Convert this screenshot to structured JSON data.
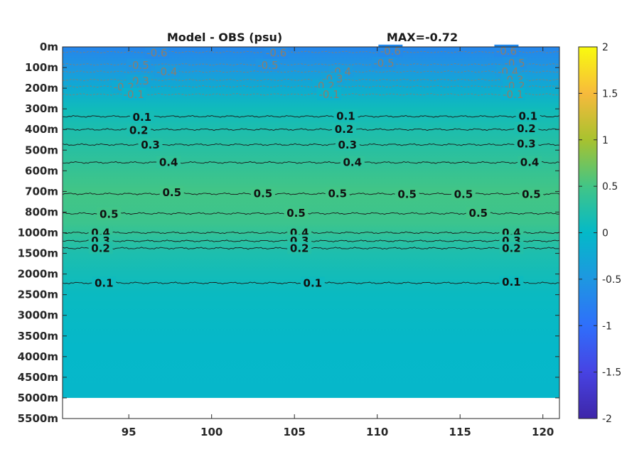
{
  "chart_data": {
    "type": "heatmap",
    "title": "Model - OBS (psu)",
    "annotation": "MAX=-0.72",
    "xlabel": "",
    "ylabel": "",
    "xlim": [
      91,
      121
    ],
    "x_ticks": [
      95,
      100,
      105,
      110,
      115,
      120
    ],
    "x_tick_labels": [
      "95",
      "100",
      "105",
      "110",
      "115",
      "120"
    ],
    "y_tick_labels": [
      "0m",
      "100m",
      "200m",
      "300m",
      "400m",
      "500m",
      "600m",
      "700m",
      "800m",
      "1000m",
      "1500m",
      "2000m",
      "2500m",
      "3000m",
      "3500m",
      "4000m",
      "4500m",
      "5000m",
      "5500m"
    ],
    "y_axis_reversed": true,
    "data_bottom_label": "5000m",
    "colorbar": {
      "range": [
        -2,
        2
      ],
      "ticks": [
        2,
        1.5,
        1,
        0.5,
        0,
        -0.5,
        -1,
        -1.5,
        -2
      ],
      "tick_labels": [
        "2",
        "1.5",
        "1",
        "0.5",
        "0",
        "-0.5",
        "-1",
        "-1.5",
        "-2"
      ],
      "colormap": "parula"
    },
    "depth_profile": {
      "depth_labels": [
        "0m",
        "100m",
        "200m",
        "300m",
        "400m",
        "500m",
        "600m",
        "700m",
        "800m",
        "1000m",
        "1500m",
        "2000m",
        "2500m",
        "3000m",
        "3500m",
        "4000m",
        "4500m",
        "5000m"
      ],
      "values": [
        -0.72,
        -0.5,
        -0.2,
        0.1,
        0.2,
        0.3,
        0.4,
        0.5,
        0.5,
        0.4,
        0.2,
        0.1,
        0.05,
        0.02,
        0.0,
        -0.02,
        -0.02,
        -0.03
      ]
    },
    "contours": [
      {
        "level": "-0.6",
        "positive": false,
        "labels": [
          {
            "x": 96.7,
            "d": 0.3
          },
          {
            "x": 103.9,
            "d": 0.3
          },
          {
            "x": 110.8,
            "d": 0.2
          },
          {
            "x": 117.8,
            "d": 0.2
          }
        ]
      },
      {
        "level": "-0.5",
        "positive": false,
        "labels": [
          {
            "x": 95.6,
            "d": 0.9
          },
          {
            "x": 103.4,
            "d": 0.9
          },
          {
            "x": 110.4,
            "d": 0.8
          },
          {
            "x": 118.3,
            "d": 0.8
          }
        ]
      },
      {
        "level": "-0.4",
        "positive": false,
        "labels": [
          {
            "x": 97.3,
            "d": 1.2
          },
          {
            "x": 107.8,
            "d": 1.2
          },
          {
            "x": 117.9,
            "d": 1.2
          }
        ]
      },
      {
        "level": "-0.3",
        "positive": false,
        "labels": [
          {
            "x": 95.6,
            "d": 1.65
          },
          {
            "x": 107.3,
            "d": 1.55
          },
          {
            "x": 118.2,
            "d": 1.6
          }
        ]
      },
      {
        "level": "-0.2",
        "positive": false,
        "labels": [
          {
            "x": 94.7,
            "d": 1.95
          },
          {
            "x": 106.8,
            "d": 1.9
          },
          {
            "x": 118.3,
            "d": 1.9
          }
        ]
      },
      {
        "level": "-0.1",
        "positive": false,
        "labels": [
          {
            "x": 95.3,
            "d": 2.3
          },
          {
            "x": 107.1,
            "d": 2.3
          },
          {
            "x": 118.2,
            "d": 2.3
          }
        ]
      },
      {
        "level": "0.1",
        "positive": true,
        "labels": [
          {
            "x": 95.8,
            "d": 3.4
          },
          {
            "x": 108.1,
            "d": 3.35
          },
          {
            "x": 119.1,
            "d": 3.35
          }
        ]
      },
      {
        "level": "0.2",
        "positive": true,
        "labels": [
          {
            "x": 95.6,
            "d": 4.05
          },
          {
            "x": 108.0,
            "d": 4.0
          },
          {
            "x": 119.0,
            "d": 3.95
          }
        ]
      },
      {
        "level": "0.3",
        "positive": true,
        "labels": [
          {
            "x": 96.3,
            "d": 4.75
          },
          {
            "x": 108.2,
            "d": 4.75
          },
          {
            "x": 119.0,
            "d": 4.7
          }
        ]
      },
      {
        "level": "0.4",
        "positive": true,
        "labels": [
          {
            "x": 97.4,
            "d": 5.6
          },
          {
            "x": 108.5,
            "d": 5.6
          },
          {
            "x": 119.2,
            "d": 5.6
          }
        ]
      },
      {
        "level": "0.5",
        "positive": true,
        "labels": [
          {
            "x": 97.6,
            "d": 7.05
          },
          {
            "x": 103.1,
            "d": 7.1
          },
          {
            "x": 107.6,
            "d": 7.1
          },
          {
            "x": 111.8,
            "d": 7.15
          },
          {
            "x": 115.2,
            "d": 7.15
          },
          {
            "x": 119.3,
            "d": 7.15
          }
        ]
      },
      {
        "level": "0.5",
        "positive": true,
        "labels": [
          {
            "x": 93.8,
            "d": 8.1
          },
          {
            "x": 105.1,
            "d": 8.05
          },
          {
            "x": 116.1,
            "d": 8.05
          }
        ]
      },
      {
        "level": "0.4",
        "positive": true,
        "labels": [
          {
            "x": 93.3,
            "d": 9.0
          },
          {
            "x": 105.3,
            "d": 9.0
          },
          {
            "x": 118.1,
            "d": 9.0
          }
        ]
      },
      {
        "level": "0.3",
        "positive": true,
        "labels": [
          {
            "x": 93.3,
            "d": 9.4
          },
          {
            "x": 105.3,
            "d": 9.4
          },
          {
            "x": 118.1,
            "d": 9.4
          }
        ]
      },
      {
        "level": "0.2",
        "positive": true,
        "labels": [
          {
            "x": 93.3,
            "d": 9.75
          },
          {
            "x": 105.3,
            "d": 9.75
          },
          {
            "x": 118.1,
            "d": 9.75
          }
        ]
      },
      {
        "level": "0.1",
        "positive": true,
        "labels": [
          {
            "x": 93.5,
            "d": 11.45
          },
          {
            "x": 106.1,
            "d": 11.45
          },
          {
            "x": 118.1,
            "d": 11.4
          }
        ]
      }
    ]
  }
}
